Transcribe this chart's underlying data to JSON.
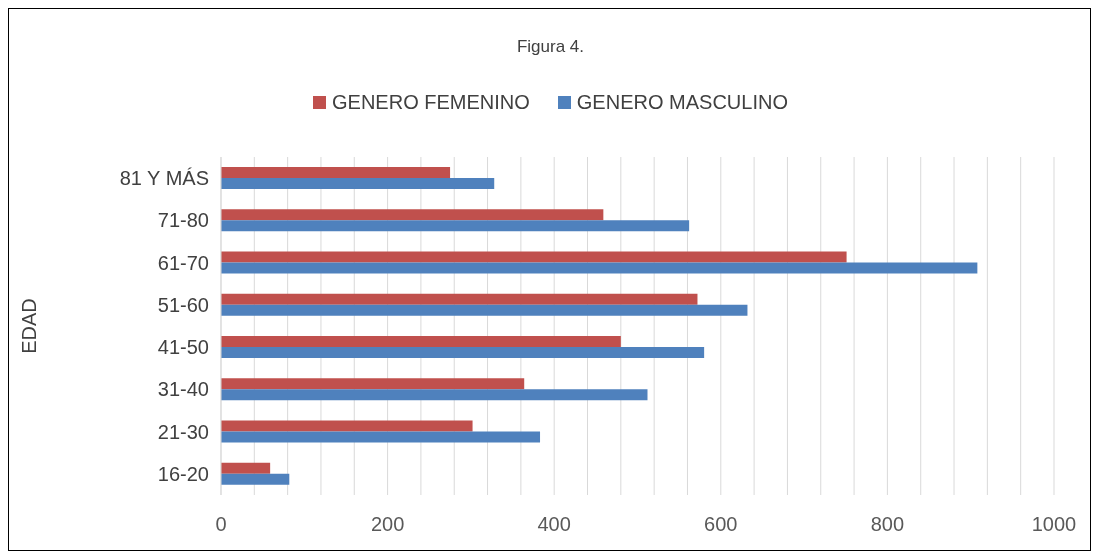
{
  "chart_data": {
    "type": "bar",
    "orientation": "horizontal",
    "title": "Figura 4.",
    "ylabel": "EDAD",
    "categories": [
      "81 Y MÁS",
      "71-80",
      "61-70",
      "51-60",
      "41-50",
      "31-40",
      "21-30",
      "16-20"
    ],
    "series": [
      {
        "name": "GENERO FEMENINO",
        "color": "#c0504d",
        "values": [
          275,
          459,
          751,
          572,
          480,
          364,
          302,
          59
        ]
      },
      {
        "name": "GENERO MASCULINO",
        "color": "#4f81bd",
        "values": [
          328,
          562,
          908,
          632,
          580,
          512,
          383,
          82
        ]
      }
    ],
    "xlim": [
      0,
      1000
    ],
    "xticks": [
      0,
      {
        "value": 40,
        "label": null
      },
      {
        "value": 80,
        "label": null
      },
      {
        "value": 120,
        "label": null
      },
      {
        "value": 160,
        "label": null
      },
      200,
      {
        "value": 240,
        "label": null
      },
      {
        "value": 280,
        "label": null
      },
      {
        "value": 320,
        "label": null
      },
      {
        "value": 360,
        "label": null
      },
      400,
      {
        "value": 440,
        "label": null
      },
      {
        "value": 480,
        "label": null
      },
      {
        "value": 520,
        "label": null
      },
      {
        "value": 560,
        "label": null
      },
      600,
      {
        "value": 640,
        "label": null
      },
      {
        "value": 680,
        "label": null
      },
      {
        "value": 720,
        "label": null
      },
      {
        "value": 760,
        "label": null
      },
      800,
      {
        "value": 840,
        "label": null
      },
      {
        "value": 880,
        "label": null
      },
      {
        "value": 920,
        "label": null
      },
      {
        "value": 960,
        "label": null
      },
      1000
    ],
    "grid": "x",
    "legend": "top"
  }
}
